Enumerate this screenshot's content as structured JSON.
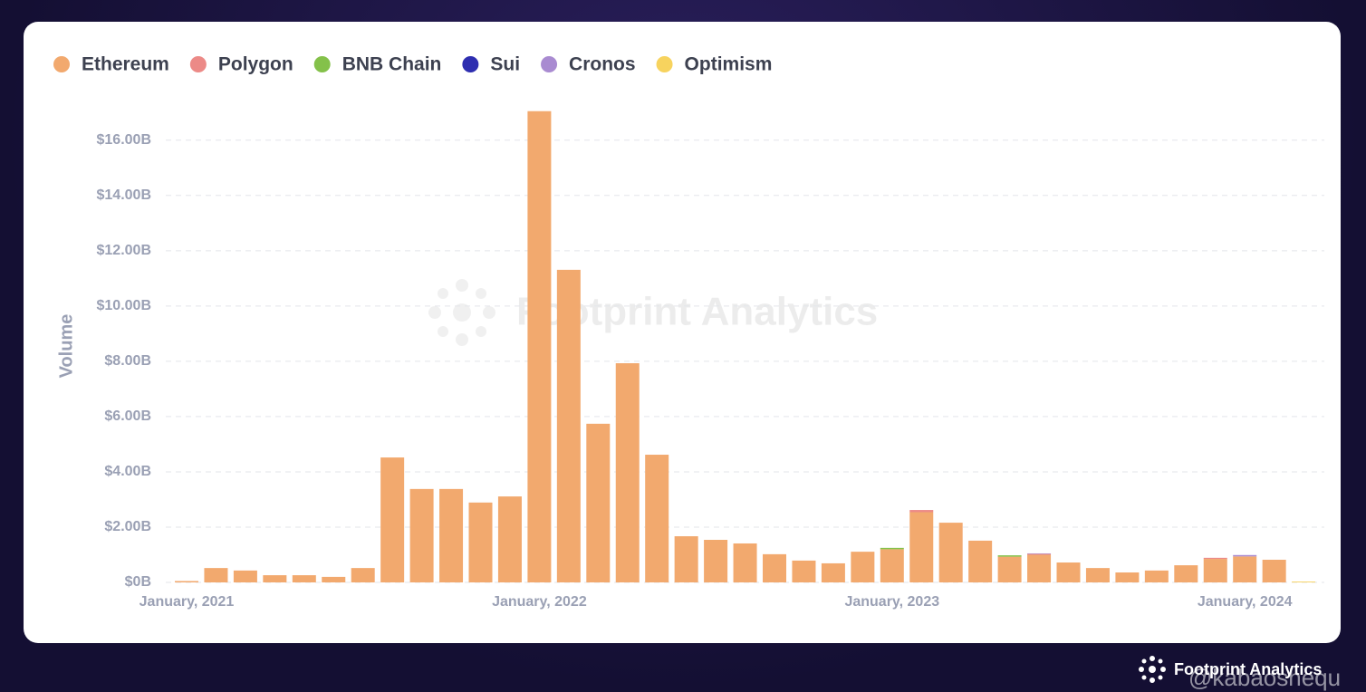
{
  "chart_data": {
    "type": "stacked-bar",
    "y_label": "Volume",
    "watermark": "Footprint Analytics",
    "brand": "Footprint Analytics",
    "credit": "@kabaoshequ",
    "categories": [
      "January, 2021",
      null,
      null,
      null,
      null,
      null,
      null,
      null,
      null,
      null,
      null,
      null,
      "January, 2022",
      null,
      null,
      null,
      null,
      null,
      null,
      null,
      null,
      null,
      null,
      null,
      "January, 2023",
      null,
      null,
      null,
      null,
      null,
      null,
      null,
      null,
      null,
      null,
      null,
      "January, 2024",
      null,
      null
    ],
    "series": [
      {
        "name": "Ethereum",
        "color": "#f2a96e",
        "values": [
          0.05,
          0.52,
          0.43,
          0.26,
          0.26,
          0.2,
          0.52,
          4.52,
          3.38,
          3.38,
          2.89,
          3.11,
          17.05,
          11.31,
          5.74,
          7.93,
          4.62,
          1.67,
          1.54,
          1.41,
          1.02,
          0.79,
          0.69,
          1.11,
          1.2,
          2.54,
          2.16,
          1.51,
          0.93,
          1.0,
          0.72,
          0.52,
          0.36,
          0.43,
          0.62,
          0.85,
          0.94,
          0.82,
          0
        ]
      },
      {
        "name": "Polygon",
        "color": "#ec8a87",
        "values": [
          0,
          0,
          0,
          0,
          0,
          0,
          0,
          0,
          0,
          0,
          0,
          0,
          0,
          0,
          0,
          0,
          0,
          0,
          0,
          0,
          0,
          0,
          0,
          0,
          0,
          0.08,
          0,
          0,
          0,
          0.03,
          0,
          0,
          0,
          0,
          0,
          0.04,
          0,
          0,
          0
        ]
      },
      {
        "name": "BNB Chain",
        "color": "#84c14a",
        "values": [
          0,
          0,
          0,
          0,
          0,
          0,
          0,
          0,
          0,
          0,
          0,
          0,
          0,
          0,
          0,
          0,
          0,
          0,
          0,
          0,
          0,
          0,
          0,
          0,
          0.05,
          0,
          0,
          0,
          0.05,
          0,
          0,
          0,
          0,
          0,
          0,
          0,
          0,
          0,
          0
        ]
      },
      {
        "name": "Sui",
        "color": "#2e2eb0",
        "values": [
          0,
          0,
          0,
          0,
          0,
          0,
          0,
          0,
          0,
          0,
          0,
          0,
          0,
          0,
          0,
          0,
          0,
          0,
          0,
          0,
          0,
          0,
          0,
          0,
          0,
          0,
          0,
          0,
          0,
          0,
          0,
          0,
          0,
          0,
          0,
          0,
          0,
          0,
          0
        ]
      },
      {
        "name": "Cronos",
        "color": "#a98bd1",
        "values": [
          0,
          0,
          0,
          0,
          0,
          0,
          0,
          0,
          0,
          0,
          0,
          0,
          0,
          0,
          0,
          0,
          0,
          0,
          0,
          0,
          0,
          0,
          0,
          0,
          0,
          0,
          0,
          0,
          0,
          0.02,
          0,
          0,
          0,
          0,
          0,
          0,
          0.05,
          0,
          0
        ]
      },
      {
        "name": "Optimism",
        "color": "#f7d35e",
        "values": [
          0,
          0,
          0,
          0,
          0,
          0,
          0,
          0,
          0,
          0,
          0,
          0,
          0,
          0,
          0,
          0,
          0,
          0,
          0,
          0,
          0,
          0,
          0,
          0,
          0,
          0,
          0,
          0,
          0,
          0,
          0,
          0,
          0,
          0,
          0,
          0,
          0,
          0,
          0.03
        ]
      }
    ],
    "ylim": [
      0,
      17.5
    ],
    "yticks": [
      {
        "value": 0,
        "label": "$0B"
      },
      {
        "value": 2,
        "label": "$2.00B"
      },
      {
        "value": 4,
        "label": "$4.00B"
      },
      {
        "value": 6,
        "label": "$6.00B"
      },
      {
        "value": 8,
        "label": "$8.00B"
      },
      {
        "value": 10,
        "label": "$10.00B"
      },
      {
        "value": 12,
        "label": "$12.00B"
      },
      {
        "value": 14,
        "label": "$14.00B"
      },
      {
        "value": 16,
        "label": "$16.00B"
      }
    ],
    "grid": true
  }
}
